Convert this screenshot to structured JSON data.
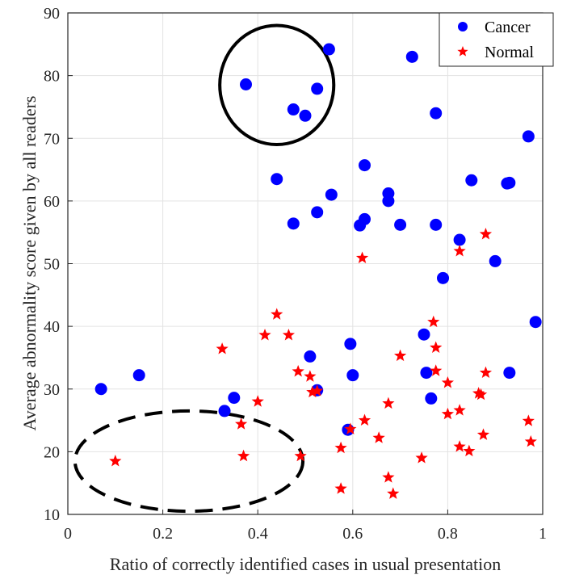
{
  "chart_data": {
    "type": "scatter",
    "xlabel": "Ratio of correctly identified cases in usual presentation",
    "ylabel": "Average abnormality score given by all readers",
    "xlim": [
      0,
      1
    ],
    "ylim": [
      10,
      90
    ],
    "xticks": [
      0,
      0.2,
      0.4,
      0.6,
      0.8,
      1
    ],
    "yticks": [
      10,
      20,
      30,
      40,
      50,
      60,
      70,
      80,
      90
    ],
    "xtick_labels": [
      "0",
      "0.2",
      "0.4",
      "0.6",
      "0.8",
      "1"
    ],
    "ytick_labels": [
      "10",
      "20",
      "30",
      "40",
      "50",
      "60",
      "70",
      "80",
      "90"
    ],
    "grid": true,
    "legend_position": "top-right",
    "series": [
      {
        "name": "Cancer",
        "marker": "circle",
        "color": "#0000ff",
        "points": [
          [
            0.07,
            30.0
          ],
          [
            0.15,
            32.2
          ],
          [
            0.33,
            26.5
          ],
          [
            0.35,
            28.6
          ],
          [
            0.375,
            78.6
          ],
          [
            0.44,
            63.5
          ],
          [
            0.475,
            56.4
          ],
          [
            0.475,
            74.6
          ],
          [
            0.5,
            73.6
          ],
          [
            0.51,
            35.2
          ],
          [
            0.525,
            29.8
          ],
          [
            0.525,
            58.2
          ],
          [
            0.525,
            77.9
          ],
          [
            0.55,
            84.2
          ],
          [
            0.555,
            61.0
          ],
          [
            0.59,
            23.5
          ],
          [
            0.595,
            37.2
          ],
          [
            0.6,
            32.2
          ],
          [
            0.615,
            56.1
          ],
          [
            0.625,
            57.1
          ],
          [
            0.625,
            65.7
          ],
          [
            0.675,
            60.0
          ],
          [
            0.675,
            61.2
          ],
          [
            0.7,
            56.2
          ],
          [
            0.725,
            83.0
          ],
          [
            0.75,
            38.7
          ],
          [
            0.755,
            32.6
          ],
          [
            0.765,
            28.5
          ],
          [
            0.775,
            56.2
          ],
          [
            0.775,
            74.0
          ],
          [
            0.79,
            47.7
          ],
          [
            0.825,
            53.8
          ],
          [
            0.85,
            63.3
          ],
          [
            0.9,
            50.4
          ],
          [
            0.925,
            62.8
          ],
          [
            0.93,
            62.9
          ],
          [
            0.93,
            32.6
          ],
          [
            0.97,
            70.3
          ],
          [
            0.985,
            40.7
          ]
        ]
      },
      {
        "name": "Normal",
        "marker": "star",
        "color": "#ff0000",
        "points": [
          [
            0.1,
            18.5
          ],
          [
            0.325,
            36.4
          ],
          [
            0.365,
            24.4
          ],
          [
            0.37,
            19.3
          ],
          [
            0.4,
            28.0
          ],
          [
            0.415,
            38.6
          ],
          [
            0.44,
            41.9
          ],
          [
            0.465,
            38.6
          ],
          [
            0.485,
            32.8
          ],
          [
            0.49,
            19.3
          ],
          [
            0.51,
            32.0
          ],
          [
            0.515,
            29.5
          ],
          [
            0.525,
            29.7
          ],
          [
            0.575,
            14.1
          ],
          [
            0.575,
            20.6
          ],
          [
            0.595,
            23.6
          ],
          [
            0.62,
            50.9
          ],
          [
            0.625,
            25.0
          ],
          [
            0.655,
            22.2
          ],
          [
            0.675,
            15.9
          ],
          [
            0.675,
            27.7
          ],
          [
            0.685,
            13.3
          ],
          [
            0.7,
            35.3
          ],
          [
            0.745,
            19.0
          ],
          [
            0.77,
            40.7
          ],
          [
            0.775,
            36.6
          ],
          [
            0.775,
            32.9
          ],
          [
            0.8,
            31.0
          ],
          [
            0.8,
            26.0
          ],
          [
            0.825,
            52.0
          ],
          [
            0.825,
            26.6
          ],
          [
            0.825,
            20.8
          ],
          [
            0.845,
            20.1
          ],
          [
            0.865,
            29.3
          ],
          [
            0.87,
            29.1
          ],
          [
            0.875,
            22.7
          ],
          [
            0.88,
            54.7
          ],
          [
            0.88,
            32.6
          ],
          [
            0.97,
            24.9
          ],
          [
            0.975,
            21.6
          ]
        ]
      }
    ],
    "annotations": [
      {
        "shape": "circle",
        "style": "solid",
        "center": [
          0.44,
          78.5
        ],
        "rx": 0.12,
        "ry": 9.5
      },
      {
        "shape": "ellipse",
        "style": "dashed",
        "center": [
          0.255,
          18.5
        ],
        "rx": 0.24,
        "ry": 8.0
      }
    ]
  }
}
